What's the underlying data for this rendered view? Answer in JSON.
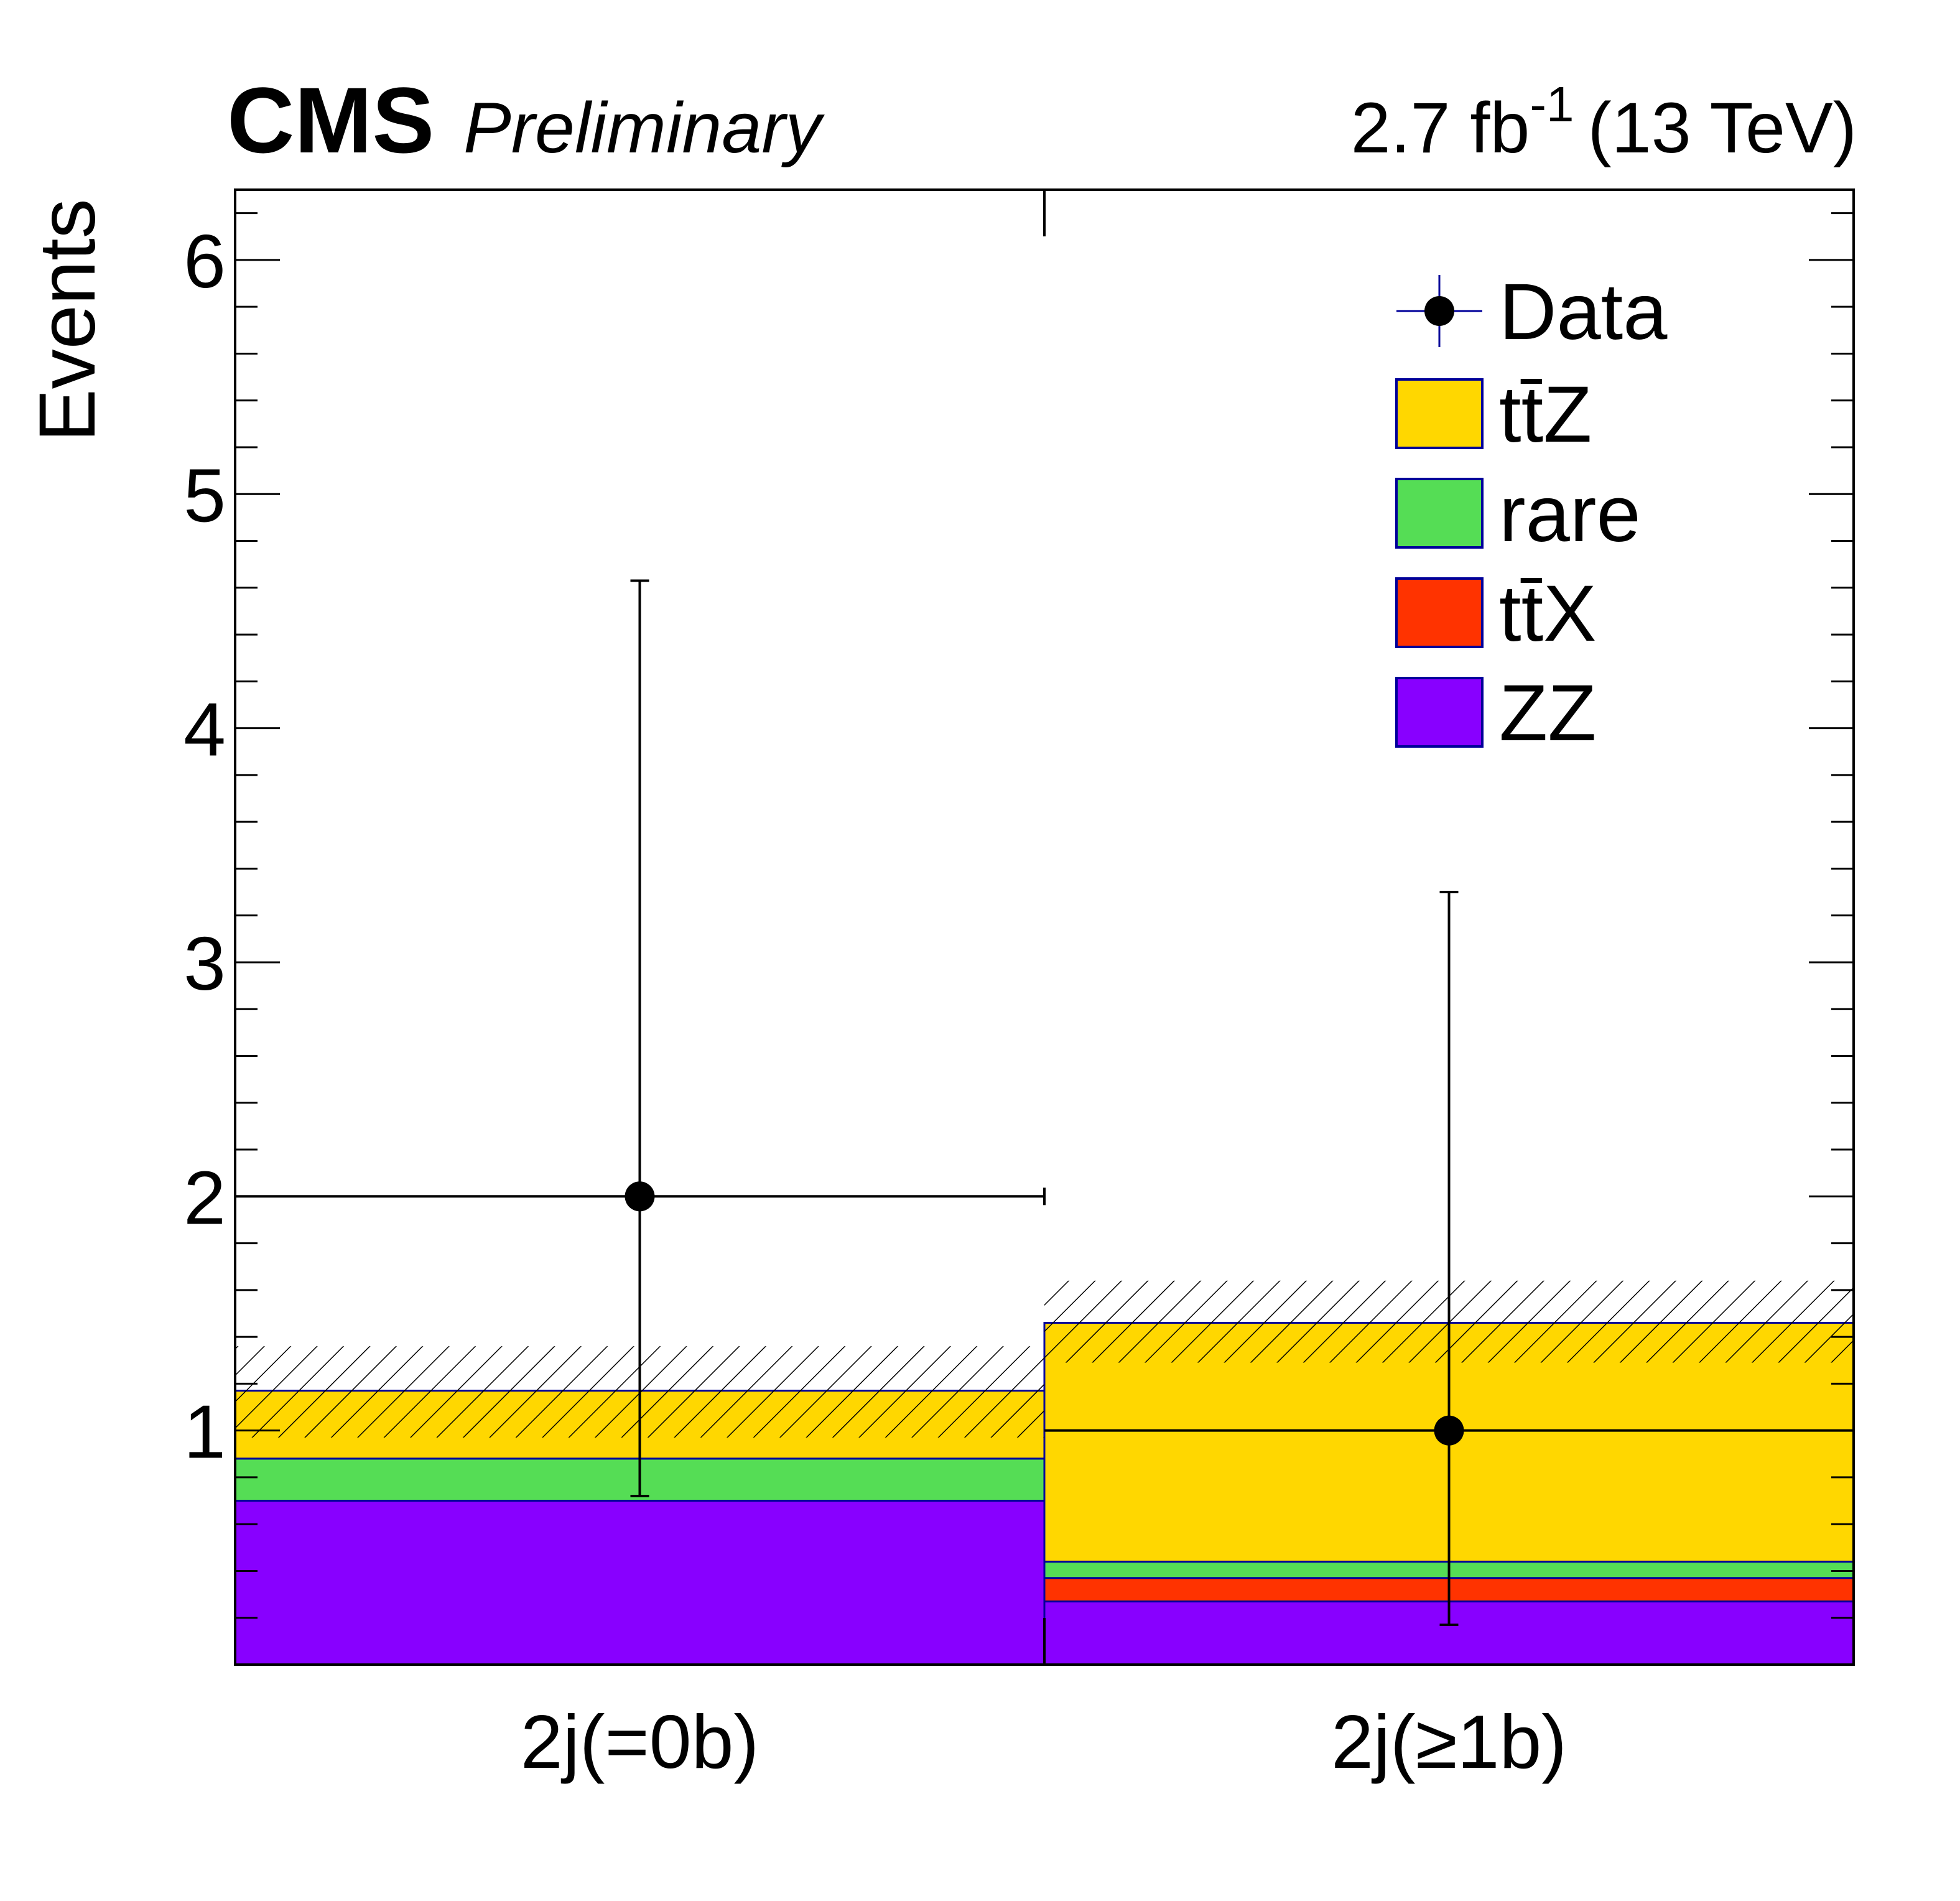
{
  "header": {
    "experiment": "CMS",
    "status": "Preliminary",
    "lumi_value": "2.7 fb",
    "lumi_exp": "-1",
    "energy": "(13 TeV)"
  },
  "colors": {
    "ttZ": "#ffd700",
    "rare": "#55dd55",
    "ttX": "#ff3300",
    "ZZ": "#8800ff",
    "outline": "#000099"
  },
  "chart_data": {
    "type": "bar",
    "stacked": true,
    "categories": [
      "2j(=0b)",
      "2j(≥1b)"
    ],
    "ylabel": "Events",
    "xlabel": "",
    "ylim": [
      0,
      6.3
    ],
    "yticks": [
      1,
      2,
      3,
      4,
      5,
      6
    ],
    "legend_position": "top-right",
    "legend": [
      "Data",
      "tt̄Z",
      "rare",
      "tt̄X",
      "ZZ"
    ],
    "series": [
      {
        "name": "ZZ",
        "key": "ZZ",
        "values": [
          0.7,
          0.27
        ]
      },
      {
        "name": "tt̄X",
        "key": "ttX",
        "values": [
          0.0,
          0.1
        ]
      },
      {
        "name": "rare",
        "key": "rare",
        "values": [
          0.18,
          0.07
        ]
      },
      {
        "name": "tt̄Z",
        "key": "ttZ",
        "values": [
          0.29,
          1.02
        ]
      }
    ],
    "uncertainty_band": {
      "low": [
        0.97,
        1.29
      ],
      "high": [
        1.36,
        1.64
      ]
    },
    "data": {
      "name": "Data",
      "values": [
        2,
        1
      ],
      "err_low": [
        1.28,
        0.83
      ],
      "err_high": [
        2.63,
        2.3
      ]
    }
  }
}
